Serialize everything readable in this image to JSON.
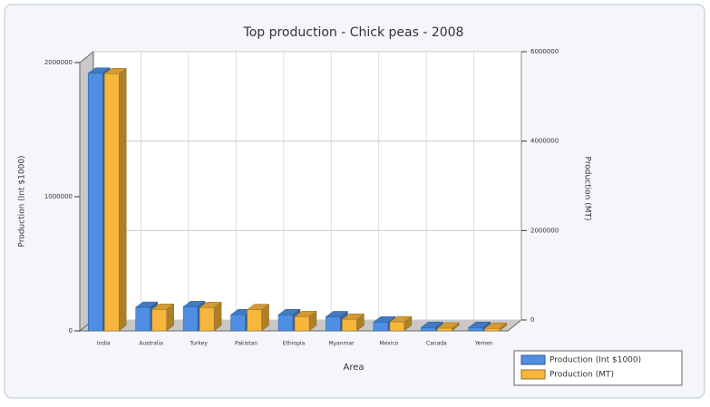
{
  "chart_data": {
    "type": "bar3d",
    "title": "Top production - Chick peas - 2008",
    "x_label": "Area",
    "y_label": "Production (Int $1000)",
    "y2_label": "Production (MT)",
    "categories": [
      "India",
      "Australia",
      "Turkey",
      "Pakistan",
      "Ethiopia",
      "Myanmar",
      "Mexico",
      "Canada",
      "Yemen"
    ],
    "series": [
      {
        "name": "Production (Int $1000)",
        "color": "#4f8fe3",
        "values": [
          1920000,
          175000,
          180000,
          120000,
          120000,
          105000,
          65000,
          25000,
          25000
        ]
      },
      {
        "name": "Production (MT)",
        "color": "#f7b63c",
        "axis": "y2",
        "values": [
          5750000,
          480000,
          520000,
          475000,
          320000,
          260000,
          200000,
          60000,
          55000
        ]
      }
    ],
    "ylim": [
      0,
      2000000
    ],
    "yticks": [
      0,
      1000000,
      2000000
    ],
    "y2lim": [
      0,
      6000000
    ],
    "y2ticks": [
      0,
      2000000,
      4000000,
      6000000
    ],
    "grid": true,
    "legend": "bottom-right"
  }
}
